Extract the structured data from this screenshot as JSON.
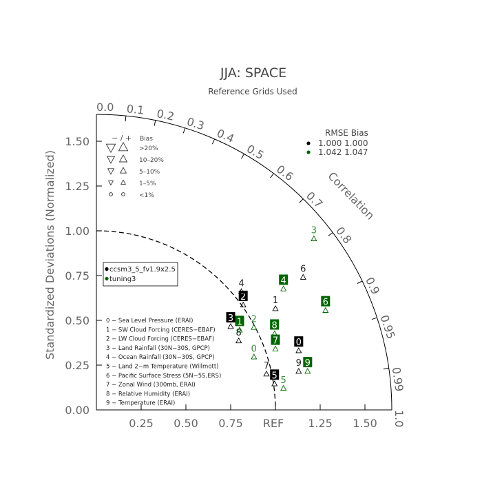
{
  "chart_data": {
    "type": "scatter",
    "subtype": "taylor-diagram",
    "title": "JJA: SPACE",
    "subtitle": "Reference Grids Used",
    "ylabel": "Standardized Deviations (Normalized)",
    "correlation_label": "Correlation",
    "ref_label": "REF",
    "std_max": 1.65,
    "x_ticks": [
      "0.25",
      "0.50",
      "0.75",
      "1.25",
      "1.50"
    ],
    "x_tick_values": [
      0.25,
      0.5,
      0.75,
      1.25,
      1.5
    ],
    "y_ticks": [
      "0.00",
      "0.25",
      "0.50",
      "0.75",
      "1.00",
      "1.25",
      "1.50"
    ],
    "y_tick_values": [
      0,
      0.25,
      0.5,
      0.75,
      1.0,
      1.25,
      1.5
    ],
    "corr_ticks": [
      "0.0",
      "0.1",
      "0.2",
      "0.3",
      "0.4",
      "0.5",
      "0.6",
      "0.7",
      "0.8",
      "0.9",
      "0.95",
      "0.99",
      "1.0"
    ],
    "corr_tick_values": [
      0,
      0.1,
      0.2,
      0.3,
      0.4,
      0.5,
      0.6,
      0.7,
      0.8,
      0.9,
      0.95,
      0.99,
      1.0
    ],
    "series": [
      {
        "name": "ccsm3_5_fv1.9x2.5",
        "color": "#000000",
        "points": [
          {
            "id": "0",
            "x": 1.13,
            "y": 0.38,
            "label_style": "box"
          },
          {
            "id": "1",
            "x": 1.0,
            "y": 0.615,
            "label_style": "plain"
          },
          {
            "id": "2",
            "x": 0.82,
            "y": 0.635,
            "label_style": "box"
          },
          {
            "id": "3",
            "x": 0.75,
            "y": 0.515,
            "label_style": "box"
          },
          {
            "id": "4",
            "x": 0.81,
            "y": 0.71,
            "label_style": "plain"
          },
          {
            "id": "5",
            "x": 0.995,
            "y": 0.195,
            "label_style": "box"
          },
          {
            "id": "6",
            "x": 1.155,
            "y": 0.79,
            "label_style": "plain"
          },
          {
            "id": "7",
            "x": 0.95,
            "y": 0.25,
            "label_style": "plain"
          },
          {
            "id": "8",
            "x": 0.795,
            "y": 0.435,
            "label_style": "plain"
          },
          {
            "id": "9",
            "x": 1.13,
            "y": 0.265,
            "label_style": "plain"
          }
        ]
      },
      {
        "name": "tuning3",
        "color": "#006400",
        "points": [
          {
            "id": "0",
            "x": 0.88,
            "y": 0.345,
            "label_style": "plain"
          },
          {
            "id": "1",
            "x": 0.8,
            "y": 0.495,
            "label_style": "box"
          },
          {
            "id": "2",
            "x": 0.88,
            "y": 0.51,
            "label_style": "plain"
          },
          {
            "id": "3",
            "x": 1.215,
            "y": 1.005,
            "label_style": "plain"
          },
          {
            "id": "4",
            "x": 1.045,
            "y": 0.725,
            "label_style": "box"
          },
          {
            "id": "5",
            "x": 1.045,
            "y": 0.17,
            "label_style": "plain"
          },
          {
            "id": "6",
            "x": 1.28,
            "y": 0.605,
            "label_style": "box"
          },
          {
            "id": "7",
            "x": 1.0,
            "y": 0.39,
            "label_style": "box"
          },
          {
            "id": "8",
            "x": 0.995,
            "y": 0.475,
            "label_style": "box"
          },
          {
            "id": "9",
            "x": 1.18,
            "y": 0.265,
            "label_style": "box"
          }
        ]
      }
    ],
    "rmse_table": {
      "header": "RMSE Bias",
      "rows": [
        {
          "color": "#000000",
          "values": "1.000 1.000"
        },
        {
          "color": "#006400",
          "values": "1.042 1.047"
        }
      ]
    },
    "bias_legend": {
      "header_signs": "− / +",
      "header_label": "Bias",
      "rows": [
        "> 20%",
        "10-20%",
        "5-10%",
        "1-5%",
        "<1%"
      ],
      "row_labels": [
        ">20%",
        "10–20%",
        "5–10%",
        "1–5%",
        "<1%"
      ]
    },
    "case_legend": [
      "ccsm3_5_fv1.9x2.5",
      "tuning3"
    ],
    "variables": [
      "0 − Sea Level Pressure (ERAI)",
      "1 − SW Cloud Forcing (CERES−EBAF)",
      "2 − LW Cloud Forcing (CERES−EBAF)",
      "3 − Land Rainfall (30N−30S, GPCP)",
      "4 − Ocean Rainfall (30N−30S, GPCP)",
      "5 − Land 2−m Temperature (Willmott)",
      "6 − Pacific Surface Stress (5N−5S,ERS)",
      "7 − Zonal Wind (300mb, ERAI)",
      "8 − Relative Humidity (ERAI)",
      "9 − Temperature (ERAI)"
    ]
  }
}
